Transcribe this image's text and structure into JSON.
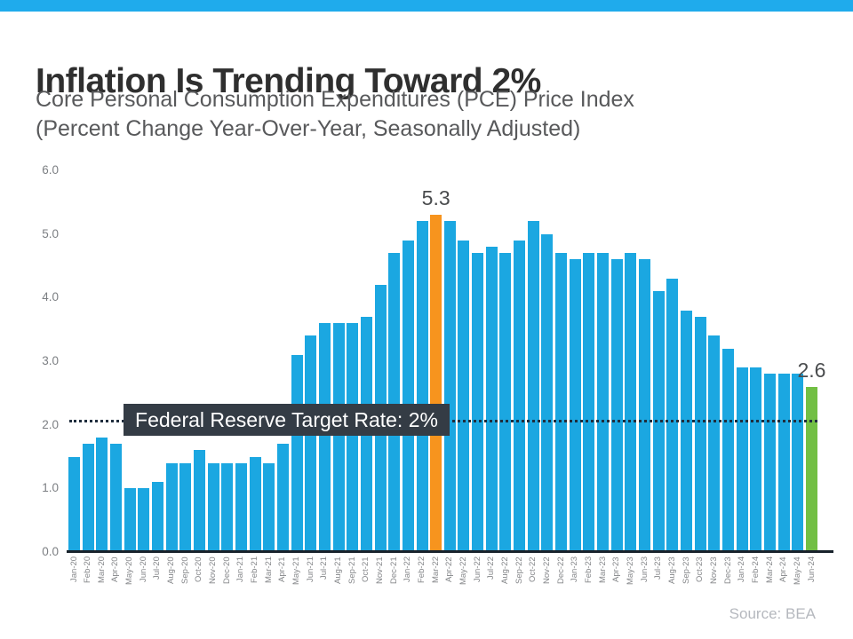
{
  "slide": {
    "accent_color": "#1FABEC",
    "background": "#FFFFFF"
  },
  "header": {
    "title": "Inflation Is Trending Toward 2%",
    "subtitle_line1": "Core Personal Consumption Expenditures (PCE) Price Index",
    "subtitle_line2": "(Percent Change Year-Over-Year, Seasonally Adjusted)"
  },
  "chart_data": {
    "type": "bar",
    "title": "Inflation Is Trending Toward 2%",
    "subtitle": "Core Personal Consumption Expenditures (PCE) Price Index (Percent Change Year-Over-Year, Seasonally Adjusted)",
    "xlabel": "",
    "ylabel": "",
    "ylim": [
      0,
      6
    ],
    "ytick_values": [
      0,
      1,
      2,
      3,
      4,
      5,
      6
    ],
    "ytick_labels": [
      "0.0",
      "1.0",
      "2.0",
      "3.0",
      "4.0",
      "5.0",
      "6.0"
    ],
    "grid": "off",
    "legend": "none",
    "bar_color": "#1BA7E1",
    "categories": [
      "Jan-20",
      "Feb-20",
      "Mar-20",
      "Apr-20",
      "May-20",
      "Jun-20",
      "Jul-20",
      "Aug-20",
      "Sep-20",
      "Oct-20",
      "Nov-20",
      "Dec-20",
      "Jan-21",
      "Feb-21",
      "Mar-21",
      "Apr-21",
      "May-21",
      "Jun-21",
      "Jul-21",
      "Aug-21",
      "Sep-21",
      "Oct-21",
      "Nov-21",
      "Dec-21",
      "Jan-22",
      "Feb-22",
      "Mar-22",
      "Apr-22",
      "May-22",
      "Jun-22",
      "Jul-22",
      "Aug-22",
      "Sep-22",
      "Oct-22",
      "Nov-22",
      "Dec-22",
      "Jan-23",
      "Feb-23",
      "Mar-23",
      "Apr-23",
      "May-23",
      "Jun-23",
      "Jul-23",
      "Aug-23",
      "Sep-23",
      "Oct-23",
      "Nov-23",
      "Dec-23",
      "Jan-24",
      "Feb-24",
      "Mar-24",
      "Apr-24",
      "May-24",
      "Jun-24"
    ],
    "values": [
      1.5,
      1.7,
      1.8,
      1.7,
      1.0,
      1.0,
      1.1,
      1.4,
      1.4,
      1.6,
      1.4,
      1.4,
      1.4,
      1.5,
      1.4,
      1.7,
      3.1,
      3.4,
      3.6,
      3.6,
      3.6,
      3.7,
      4.2,
      4.7,
      4.9,
      5.2,
      5.3,
      5.2,
      4.9,
      4.7,
      4.8,
      4.7,
      4.9,
      5.2,
      5.0,
      4.7,
      4.6,
      4.7,
      4.7,
      4.6,
      4.7,
      4.6,
      4.1,
      4.3,
      3.8,
      3.7,
      3.4,
      3.2,
      2.9,
      2.9,
      2.8,
      2.8,
      2.8,
      2.6
    ],
    "annotations": {
      "peak": {
        "category": "Mar-22",
        "value": 5.3,
        "label": "5.3",
        "color": "#F7941E"
      },
      "latest": {
        "category": "Jun-24",
        "value": 2.6,
        "label": "2.6",
        "color": "#72BF44"
      }
    },
    "target_line": {
      "value": 2.0,
      "label": "Federal Reserve Target Rate: 2%",
      "line_style": "dotted",
      "dot_color": "#1F2D3D",
      "box_bg": "#343C45",
      "text_color": "#FFFFFF"
    },
    "source": "Source: BEA"
  }
}
